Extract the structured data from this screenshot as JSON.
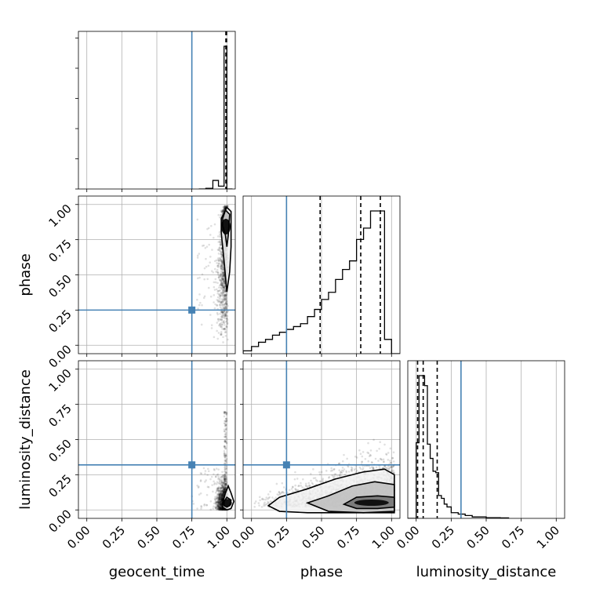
{
  "chart_data": {
    "type": "corner",
    "parameters": [
      "geocent_time",
      "phase",
      "luminosity_distance"
    ],
    "axis_labels": {
      "x": [
        "geocent_time",
        "phase",
        "luminosity_distance"
      ],
      "y": [
        "",
        "phase",
        "luminosity_distance"
      ]
    },
    "tick_values": [
      0.0,
      0.25,
      0.5,
      0.75,
      1.0
    ],
    "tick_labels": [
      "0.00",
      "0.25",
      "0.50",
      "0.75",
      "1.00"
    ],
    "range": [
      [
        -0.06,
        1.06
      ],
      [
        -0.06,
        1.06
      ],
      [
        -0.06,
        1.06
      ]
    ],
    "truths": [
      0.75,
      0.25,
      0.32
    ],
    "truth_color": "#4682b4",
    "grid": true,
    "histograms": [
      {
        "parameter": "geocent_time",
        "edges": [
          0.8,
          0.85,
          0.9,
          0.94,
          0.98,
          1.0,
          1.04
        ],
        "heights": [
          0.0,
          0.005,
          0.06,
          0.02,
          1.0,
          0.0
        ],
        "quantiles": [
          0.993,
          0.995,
          0.998
        ]
      },
      {
        "parameter": "phase",
        "edges": [
          -0.06,
          0.0,
          0.05,
          0.1,
          0.15,
          0.2,
          0.25,
          0.3,
          0.35,
          0.4,
          0.45,
          0.5,
          0.55,
          0.6,
          0.65,
          0.7,
          0.75,
          0.8,
          0.85,
          0.9,
          0.95,
          1.0,
          1.06
        ],
        "heights": [
          0.02,
          0.05,
          0.08,
          0.1,
          0.13,
          0.15,
          0.17,
          0.19,
          0.21,
          0.26,
          0.31,
          0.38,
          0.43,
          0.52,
          0.59,
          0.65,
          0.8,
          0.88,
          1.0,
          1.0,
          0.1,
          0.0
        ],
        "quantiles": [
          0.49,
          0.78,
          0.92
        ]
      },
      {
        "parameter": "luminosity_distance",
        "edges": [
          -0.06,
          0.0,
          0.02,
          0.04,
          0.06,
          0.08,
          0.1,
          0.12,
          0.14,
          0.16,
          0.18,
          0.2,
          0.22,
          0.25,
          0.3,
          0.35,
          0.4,
          0.5,
          0.6,
          0.66
        ],
        "heights": [
          0.0,
          0.53,
          1.0,
          1.0,
          0.93,
          0.52,
          0.42,
          0.33,
          0.32,
          0.16,
          0.14,
          0.1,
          0.08,
          0.04,
          0.03,
          0.02,
          0.01,
          0.005,
          0.003
        ],
        "quantiles": [
          0.01,
          0.05,
          0.15
        ]
      }
    ],
    "pairs": [
      {
        "x": "geocent_time",
        "y": "phase",
        "contour_levels": [
          [
            [
              0.97,
              0.9
            ],
            [
              0.99,
              0.96
            ],
            [
              1.02,
              0.93
            ],
            [
              1.01,
              0.78
            ],
            [
              1.0,
              0.7
            ],
            [
              0.99,
              0.78
            ],
            [
              0.97,
              0.85
            ]
          ],
          [
            [
              0.96,
              0.9
            ],
            [
              1.0,
              0.98
            ],
            [
              1.03,
              0.95
            ],
            [
              1.03,
              0.7
            ],
            [
              1.02,
              0.52
            ],
            [
              1.0,
              0.38
            ],
            [
              0.98,
              0.6
            ],
            [
              0.96,
              0.8
            ]
          ]
        ]
      },
      {
        "x": "geocent_time",
        "y": "luminosity_distance",
        "contour_levels": [
          [
            [
              0.98,
              0.06
            ],
            [
              1.0,
              0.09
            ],
            [
              1.03,
              0.07
            ],
            [
              1.02,
              0.03
            ],
            [
              1.0,
              0.02
            ],
            [
              0.98,
              0.03
            ]
          ],
          [
            [
              0.97,
              0.05
            ],
            [
              0.99,
              0.12
            ],
            [
              1.01,
              0.17
            ],
            [
              1.03,
              0.12
            ],
            [
              1.05,
              0.06
            ],
            [
              1.03,
              0.01
            ],
            [
              1.0,
              0.0
            ],
            [
              0.97,
              0.02
            ]
          ]
        ]
      },
      {
        "x": "phase",
        "y": "luminosity_distance",
        "contour_levels": [
          [
            [
              0.66,
              0.04
            ],
            [
              0.75,
              0.09
            ],
            [
              0.9,
              0.1
            ],
            [
              1.02,
              0.09
            ],
            [
              1.02,
              0.02
            ],
            [
              0.9,
              0.01
            ],
            [
              0.75,
              0.01
            ]
          ],
          [
            [
              0.4,
              0.05
            ],
            [
              0.55,
              0.1
            ],
            [
              0.72,
              0.17
            ],
            [
              0.88,
              0.2
            ],
            [
              1.02,
              0.18
            ],
            [
              1.02,
              -0.01
            ],
            [
              0.8,
              -0.02
            ],
            [
              0.55,
              -0.01
            ]
          ],
          [
            [
              0.12,
              0.03
            ],
            [
              0.2,
              0.09
            ],
            [
              0.4,
              0.15
            ],
            [
              0.6,
              0.22
            ],
            [
              0.8,
              0.27
            ],
            [
              0.95,
              0.29
            ],
            [
              1.02,
              0.25
            ],
            [
              1.02,
              -0.02
            ],
            [
              0.7,
              -0.02
            ],
            [
              0.4,
              -0.02
            ],
            [
              0.2,
              -0.01
            ]
          ]
        ]
      }
    ]
  }
}
